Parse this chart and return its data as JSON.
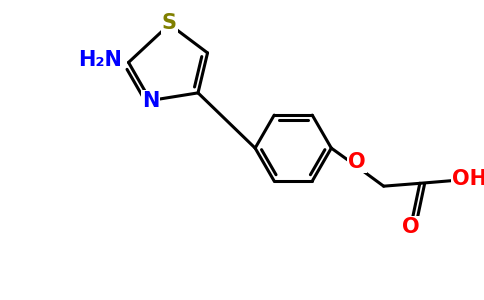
{
  "background_color": "#ffffff",
  "bond_color": "#000000",
  "bond_width": 2.2,
  "atom_colors": {
    "S": "#808000",
    "N": "#0000ff",
    "O": "#ff0000",
    "NH2": "#0000ff"
  },
  "figsize": [
    4.84,
    3.0
  ],
  "dpi": 100
}
